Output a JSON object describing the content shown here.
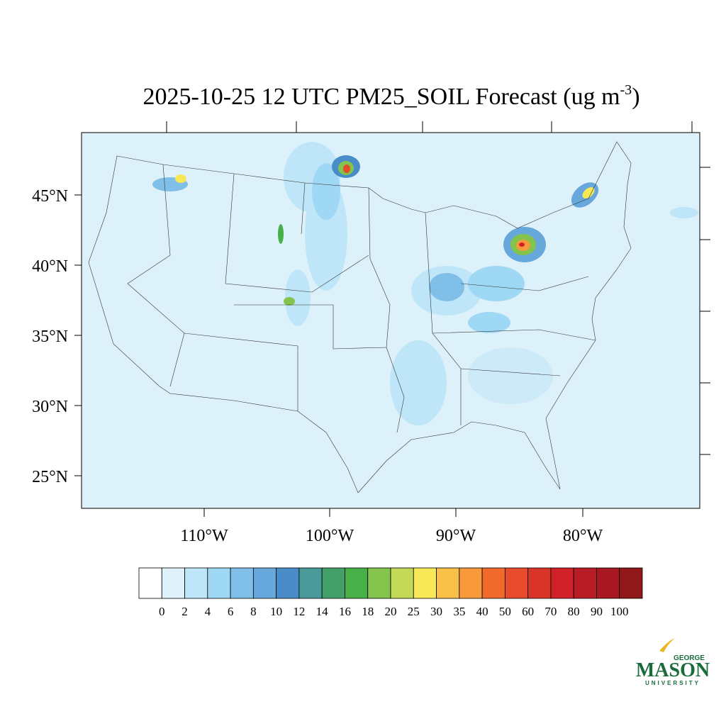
{
  "title": {
    "main": "2025-10-25 12 UTC PM25_SOIL Forecast (ug m",
    "superscript": "-3",
    "end": ")"
  },
  "latitude_labels": [
    "45°N",
    "40°N",
    "35°N",
    "30°N",
    "25°N"
  ],
  "longitude_labels": [
    "110°W",
    "100°W",
    "90°W",
    "80°W"
  ],
  "colorbar": {
    "levels": [
      0,
      2,
      4,
      6,
      8,
      10,
      12,
      14,
      16,
      18,
      20,
      25,
      30,
      35,
      40,
      50,
      60,
      70,
      80,
      90,
      100
    ],
    "colors": [
      "#ffffff",
      "#dff2fb",
      "#bfe6f8",
      "#9fd8f5",
      "#80c0e8",
      "#66a8dc",
      "#4a8cc8",
      "#4a9a9a",
      "#44a06a",
      "#48b048",
      "#84c44c",
      "#c4d858",
      "#f8e858",
      "#f8c048",
      "#f89a3c",
      "#f06a2c",
      "#e84a2c",
      "#d83428",
      "#d02028",
      "#b81c24",
      "#a81820",
      "#901818"
    ]
  },
  "logo": {
    "top": "GEORGE",
    "main": "MASON",
    "bottom": "UNIVERSITY"
  }
}
